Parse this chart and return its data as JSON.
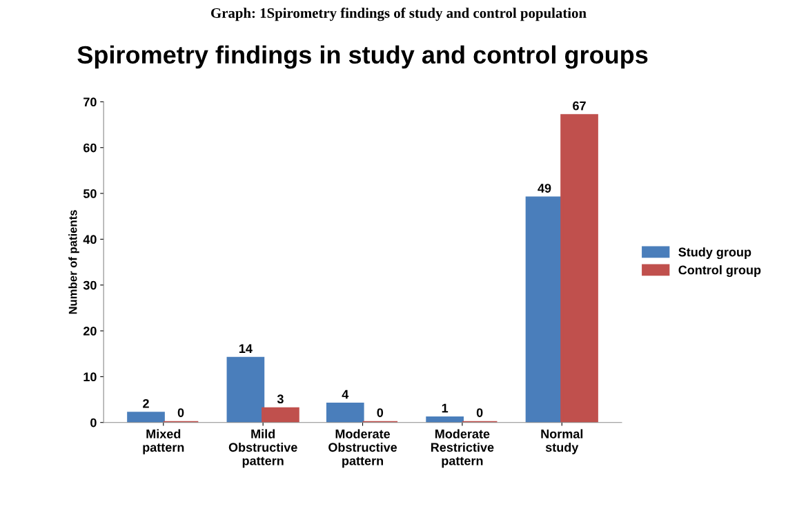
{
  "chart_data": {
    "type": "bar",
    "title": "Spirometry findings in study and control groups",
    "ylabel": "Number of patients",
    "annotations": [
      "Graph: 1Spirometry findings of study and control population"
    ],
    "categories": [
      "Mixed\npattern",
      "Mild\nObstructive\npattern",
      "Moderate\nObstructive\npattern",
      "Moderate\nRestrictive\npattern",
      "Normal\nstudy"
    ],
    "series": [
      {
        "name": "Study group",
        "color": "#4a7ebb",
        "values": [
          2,
          14,
          4,
          1,
          49
        ]
      },
      {
        "name": "Control group",
        "color": "#c0504d",
        "values": [
          0,
          3,
          0,
          0,
          67
        ]
      }
    ],
    "ylim": [
      0,
      70
    ],
    "yticks": [
      0,
      10,
      20,
      30,
      40,
      50,
      60,
      70
    ],
    "data_labels": true,
    "legend": "right",
    "grid": false
  }
}
